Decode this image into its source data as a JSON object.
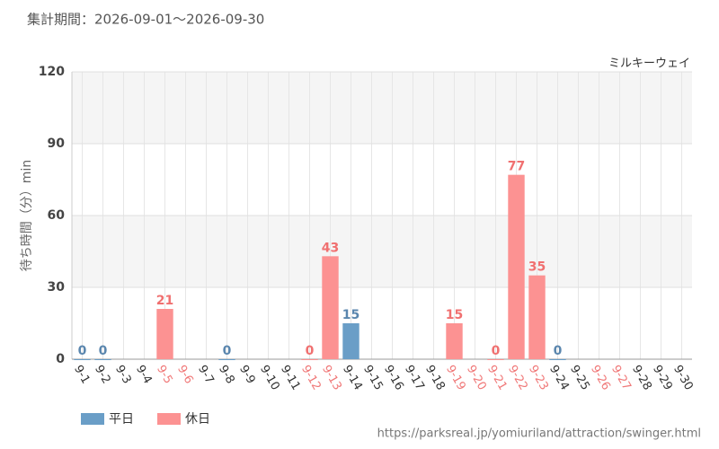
{
  "chart_data": {
    "type": "bar",
    "title": "集計期間：2026-09-01～2026-09-30",
    "subtitle": "ミルキーウェイ",
    "y_label": "待ち時間（分）min",
    "source": "https://parksreal.jp/yomiuriland/attraction/swinger.html",
    "categories": [
      "9-1",
      "9-2",
      "9-3",
      "9-4",
      "9-5",
      "9-6",
      "9-7",
      "9-8",
      "9-9",
      "9-10",
      "9-11",
      "9-12",
      "9-13",
      "9-14",
      "9-15",
      "9-16",
      "9-17",
      "9-18",
      "9-19",
      "9-20",
      "9-21",
      "9-22",
      "9-23",
      "9-24",
      "9-25",
      "9-26",
      "9-27",
      "9-28",
      "9-29",
      "9-30"
    ],
    "x_label_colors": [
      "#333",
      "#333",
      "#333",
      "#333",
      "#f07878",
      "#f07878",
      "#333",
      "#333",
      "#333",
      "#333",
      "#333",
      "#f07878",
      "#f07878",
      "#333",
      "#333",
      "#333",
      "#333",
      "#333",
      "#f07878",
      "#f07878",
      "#f07878",
      "#f07878",
      "#f07878",
      "#333",
      "#333",
      "#f07878",
      "#f07878",
      "#333",
      "#333",
      "#333"
    ],
    "series": [
      {
        "name": "平日",
        "color": "#6a9ec7",
        "label_color": "#5a86ae",
        "values": [
          0,
          0,
          null,
          null,
          null,
          null,
          null,
          0,
          null,
          null,
          null,
          null,
          null,
          15,
          null,
          null,
          null,
          null,
          null,
          null,
          null,
          null,
          null,
          0,
          null,
          null,
          null,
          null,
          null,
          null
        ]
      },
      {
        "name": "休日",
        "color": "#fc9292",
        "label_color": "#f07070",
        "values": [
          null,
          null,
          null,
          null,
          21,
          null,
          null,
          null,
          null,
          null,
          null,
          0,
          43,
          null,
          null,
          null,
          null,
          null,
          15,
          null,
          0,
          77,
          35,
          null,
          null,
          null,
          null,
          null,
          null,
          null
        ]
      }
    ],
    "ylim": [
      0,
      120
    ],
    "yticks": [
      0,
      30,
      60,
      90,
      120
    ],
    "grid": true
  }
}
